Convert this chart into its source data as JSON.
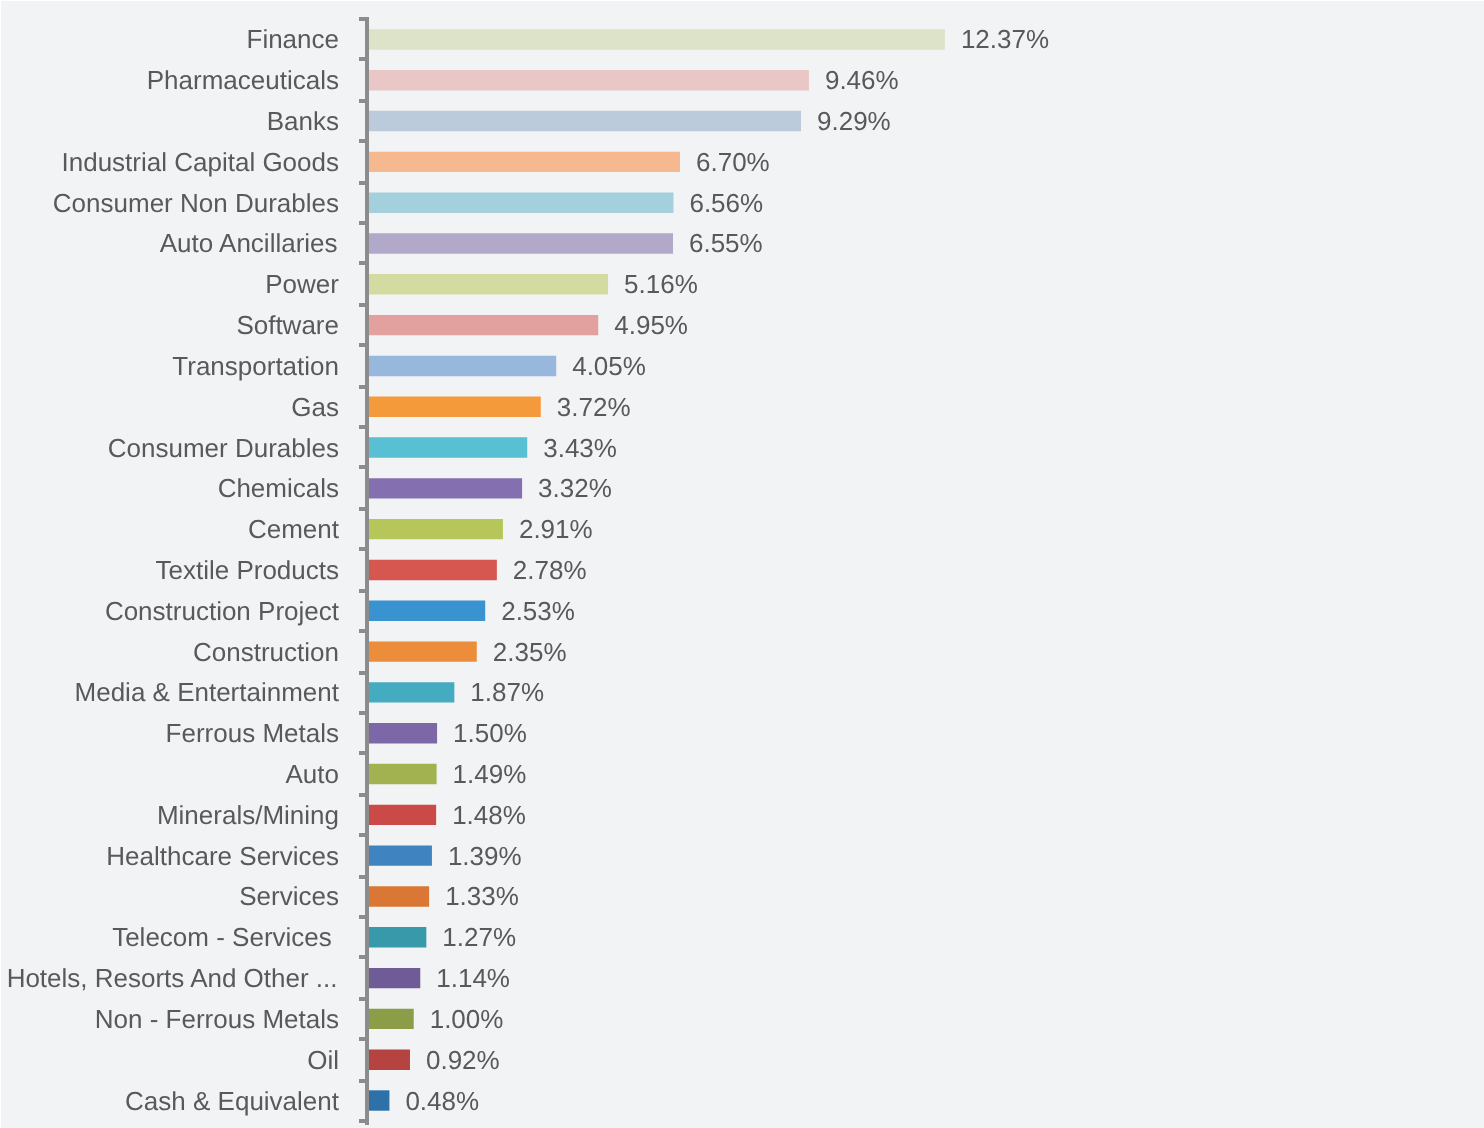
{
  "chart_data": {
    "type": "bar",
    "orientation": "horizontal",
    "categories": [
      "Finance",
      "Pharmaceuticals",
      "Banks",
      "Industrial Capital Goods",
      "Consumer Non Durables",
      "Auto Ancillaries",
      "Power",
      "Software",
      "Transportation",
      "Gas",
      "Consumer Durables",
      "Chemicals",
      "Cement",
      "Textile Products",
      "Construction Project",
      "Construction",
      "Media & Entertainment",
      "Ferrous Metals",
      "Auto",
      "Minerals/Mining",
      "Healthcare Services",
      "Services",
      "Telecom  - Services",
      "Hotels, Resorts And Other ...",
      "Non - Ferrous Metals",
      "Oil",
      "Cash & Equivalent"
    ],
    "values": [
      12.37,
      9.46,
      9.29,
      6.7,
      6.56,
      6.55,
      5.16,
      4.95,
      4.05,
      3.72,
      3.43,
      3.32,
      2.91,
      2.78,
      2.53,
      2.35,
      1.87,
      1.5,
      1.49,
      1.48,
      1.39,
      1.33,
      1.27,
      1.14,
      1.0,
      0.92,
      0.48
    ],
    "value_labels": [
      "12.37%",
      "9.46%",
      "9.29%",
      "6.70%",
      "6.56%",
      "6.55%",
      "5.16%",
      "4.95%",
      "4.05%",
      "3.72%",
      "3.43%",
      "3.32%",
      "2.91%",
      "2.78%",
      "2.53%",
      "2.35%",
      "1.87%",
      "1.50%",
      "1.49%",
      "1.48%",
      "1.39%",
      "1.33%",
      "1.27%",
      "1.14%",
      "1.00%",
      "0.92%",
      "0.48%"
    ],
    "colors": [
      "#dde3c8",
      "#e9c7c6",
      "#bccbdb",
      "#f6b98f",
      "#a3d0dc",
      "#b2a8c9",
      "#d3dba0",
      "#e2a19f",
      "#98b7dc",
      "#f59a3a",
      "#59bfd2",
      "#8470b1",
      "#b6c65b",
      "#d65650",
      "#3a93d1",
      "#ec8d3b",
      "#45abc0",
      "#7c68a6",
      "#a3b251",
      "#c94a46",
      "#3f83c0",
      "#d97834",
      "#3799aa",
      "#6f5b95",
      "#8c9d48",
      "#b54340",
      "#2e70a8"
    ],
    "grid": false
  }
}
